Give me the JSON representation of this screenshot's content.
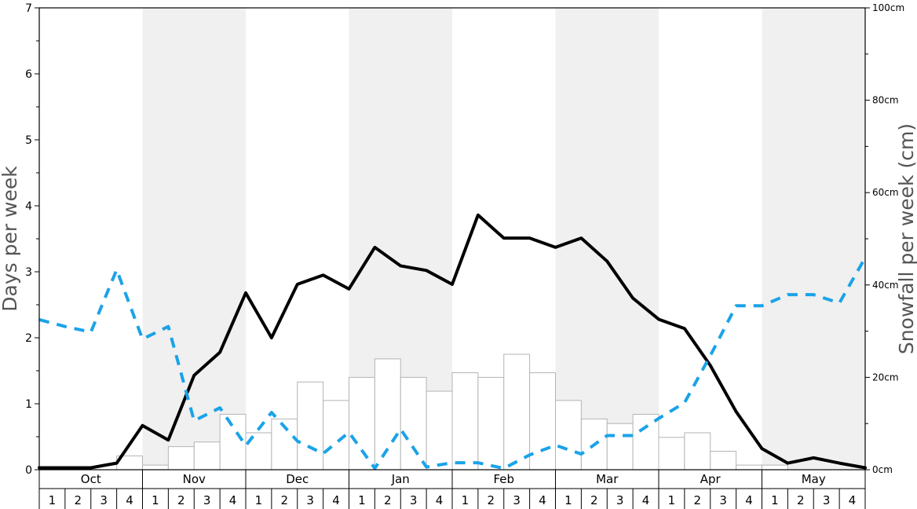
{
  "chart_data": {
    "type": "bar",
    "title": "",
    "ylabel_left": "Days per week",
    "ylabel_right": "Snowfall per week (cm)",
    "y_left_range": [
      0,
      7
    ],
    "y_left_ticks": [
      "0",
      "1",
      "2",
      "3",
      "4",
      "5",
      "6",
      "7"
    ],
    "y_right_range": [
      0,
      100
    ],
    "y_right_ticks": [
      "0cm",
      "20cm",
      "40cm",
      "60cm",
      "80cm",
      "100cm"
    ],
    "months": [
      "Oct",
      "Nov",
      "Dec",
      "Jan",
      "Feb",
      "Mar",
      "Apr",
      "May"
    ],
    "week_labels": [
      "1",
      "2",
      "3",
      "4"
    ],
    "colors": {
      "band_shade": "#f0f0f0",
      "bar_fill": "#ffffff",
      "bar_stroke": "#b4b4b4",
      "days_line": "#000000",
      "snowfall_line": "#1aa3e8"
    },
    "series": [
      {
        "kind": "bar",
        "axis": "left",
        "values": [
          0,
          0,
          0,
          0.21,
          0.07,
          0.35,
          0.42,
          0.84,
          0.56,
          0.77,
          1.33,
          1.05,
          1.4,
          1.68,
          1.4,
          1.19,
          1.47,
          1.4,
          1.75,
          1.47,
          1.05,
          0.77,
          0.7,
          0.84,
          0.49,
          0.56,
          0.28,
          0.07,
          0.07,
          0,
          0,
          0
        ]
      },
      {
        "kind": "line",
        "axis": "left",
        "values": [
          0.03,
          0.03,
          0.03,
          0.1,
          0.67,
          0.45,
          1.43,
          1.78,
          2.68,
          2.0,
          2.81,
          2.95,
          2.74,
          3.37,
          3.09,
          3.02,
          2.81,
          3.86,
          3.51,
          3.51,
          3.37,
          3.51,
          3.16,
          2.6,
          2.28,
          2.14,
          1.58,
          0.88,
          0.32,
          0.1,
          0.18,
          0.1,
          0.03
        ]
      },
      {
        "kind": "dashed-line",
        "axis": "right",
        "values": [
          32.5,
          31.0,
          29.8,
          43.3,
          28.3,
          31.0,
          10.6,
          13.4,
          5.2,
          12.4,
          6.2,
          3.5,
          8.1,
          0.3,
          8.8,
          0.6,
          1.5,
          1.5,
          0.3,
          3.2,
          5.3,
          3.4,
          7.4,
          7.4,
          11.1,
          14.5,
          24.7,
          35.5,
          35.5,
          37.9,
          37.9,
          36.1,
          45.9
        ]
      }
    ]
  }
}
